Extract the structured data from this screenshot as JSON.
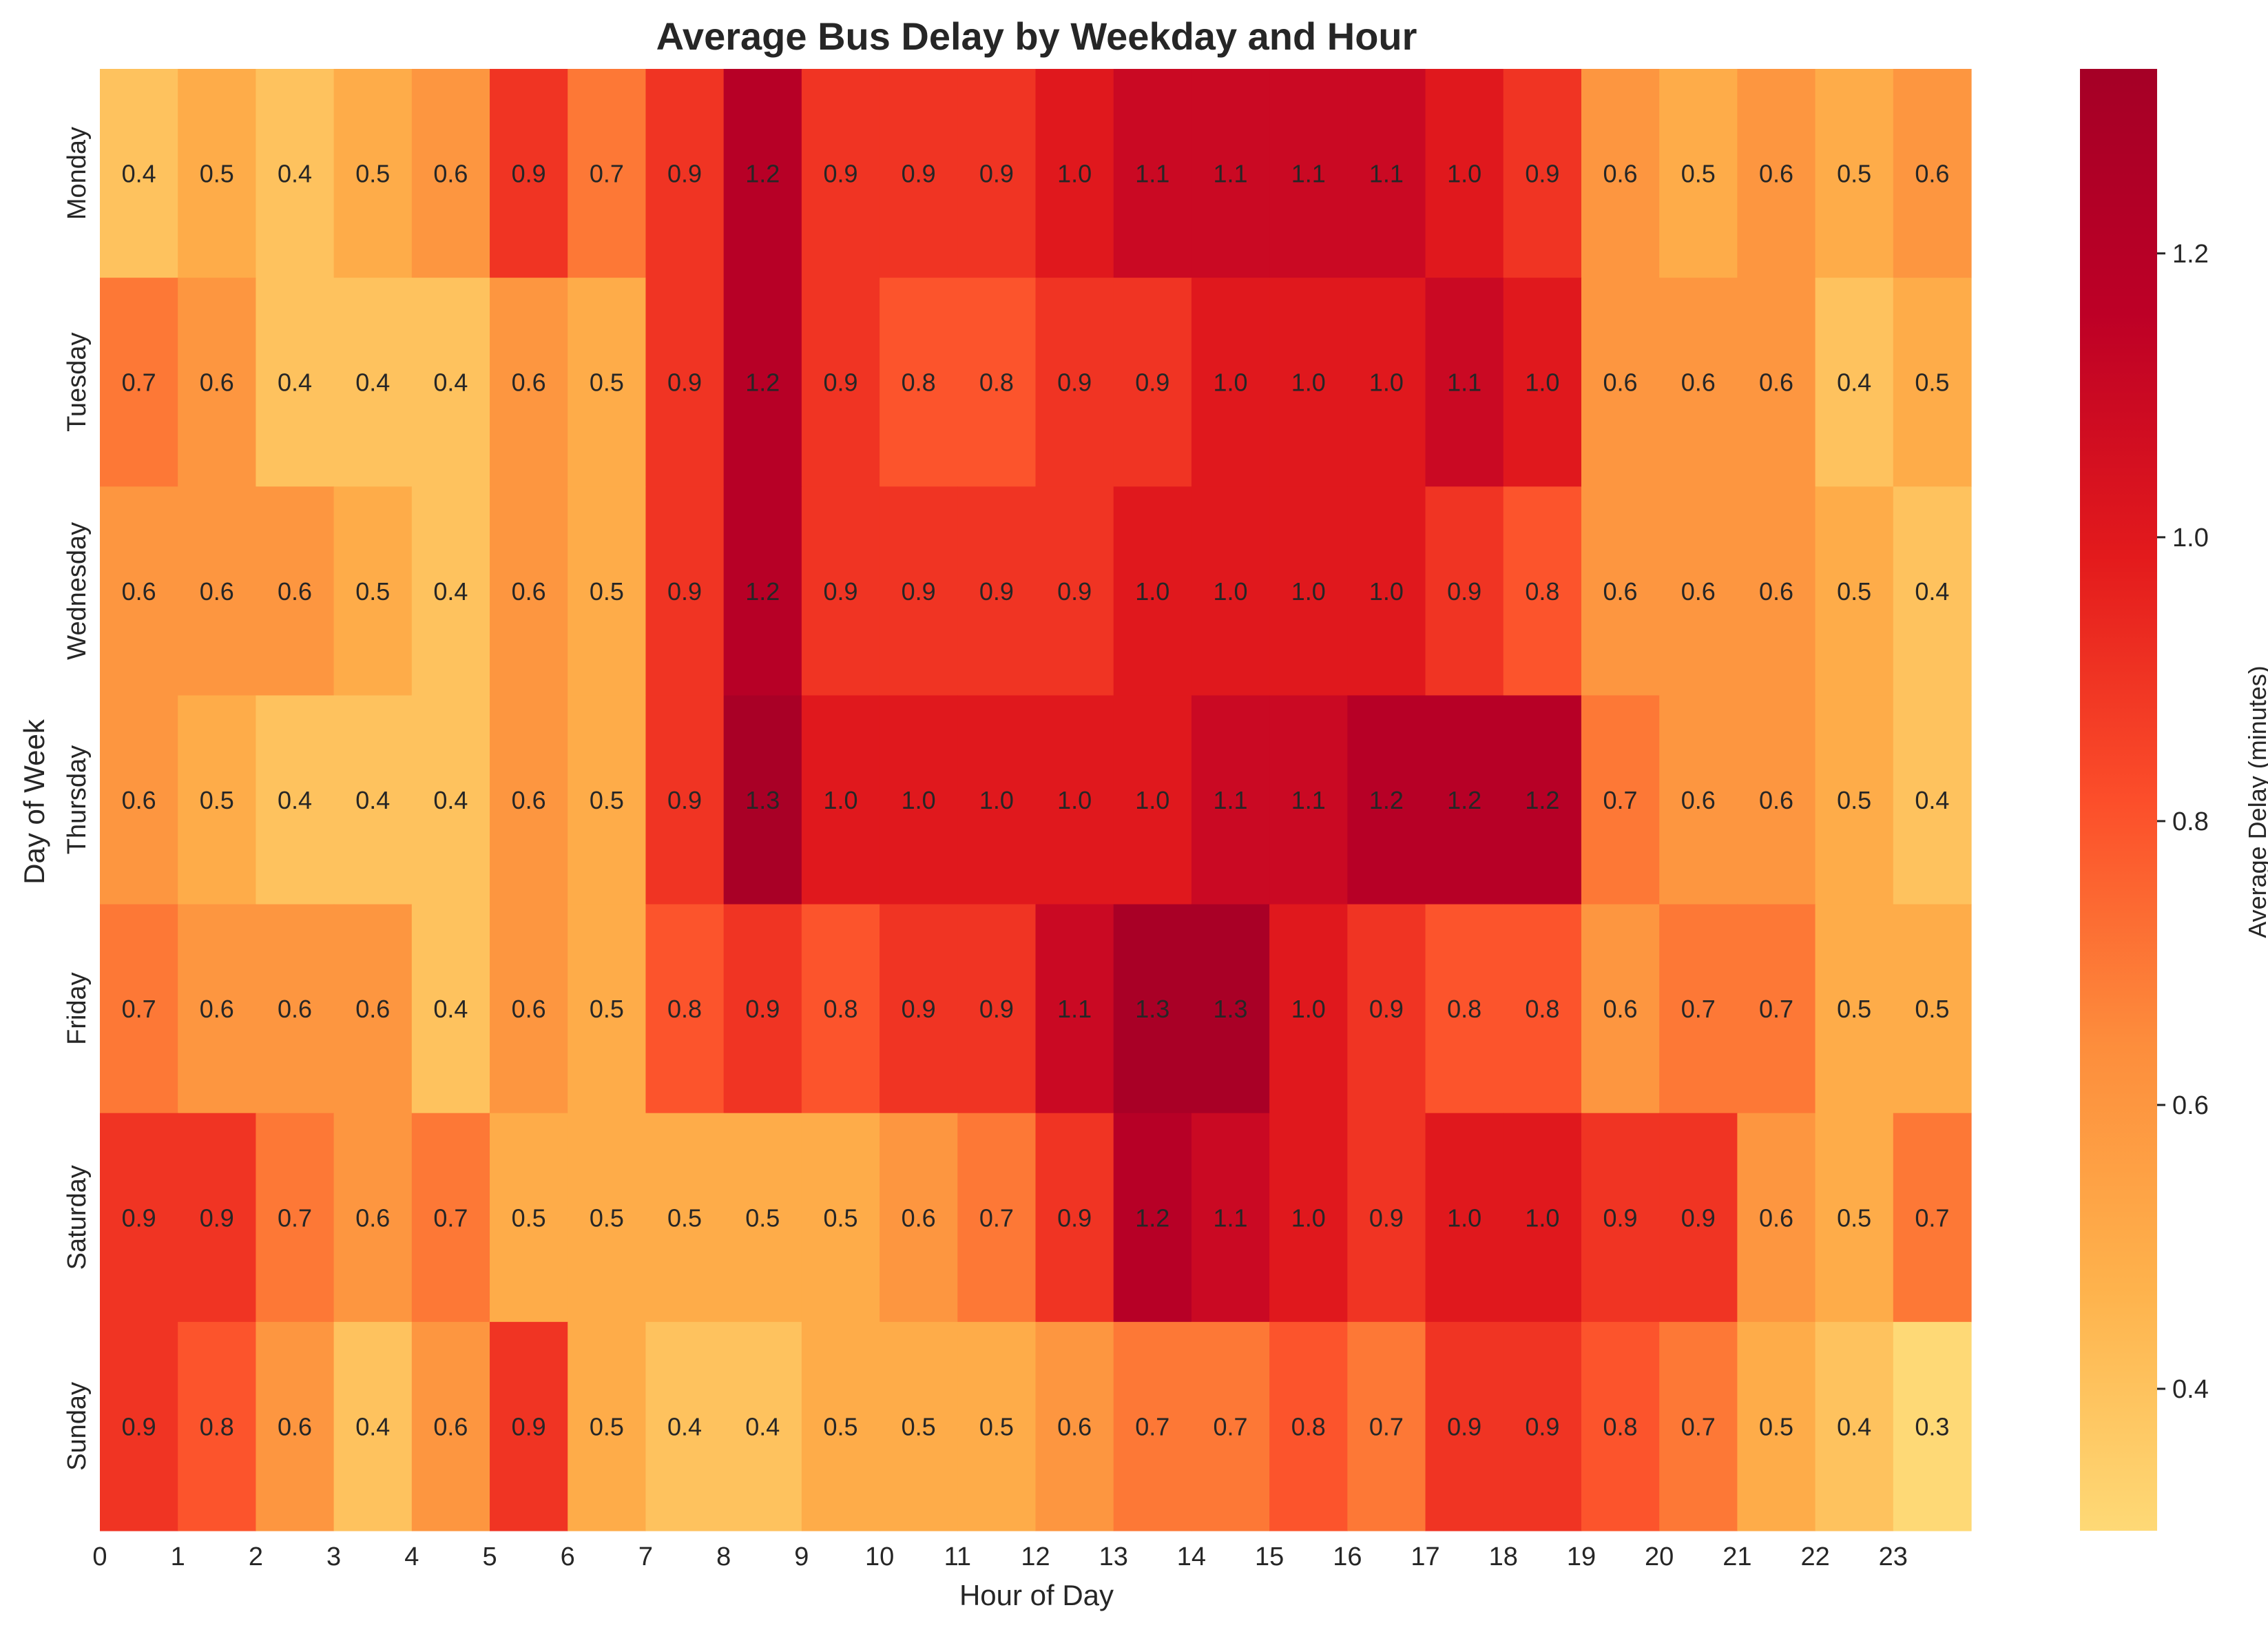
{
  "chart_data": {
    "type": "heatmap",
    "title": "Average Bus Delay by Weekday and Hour",
    "xlabel": "Hour of Day",
    "ylabel": "Day of Week",
    "x_categories": [
      0,
      1,
      2,
      3,
      4,
      5,
      6,
      7,
      8,
      9,
      10,
      11,
      12,
      13,
      14,
      15,
      16,
      17,
      18,
      19,
      20,
      21,
      22,
      23
    ],
    "y_categories": [
      "Monday",
      "Tuesday",
      "Wednesday",
      "Thursday",
      "Friday",
      "Saturday",
      "Sunday"
    ],
    "values": [
      [
        0.4,
        0.5,
        0.4,
        0.5,
        0.6,
        0.9,
        0.7,
        0.9,
        1.2,
        0.9,
        0.9,
        0.9,
        1.0,
        1.1,
        1.1,
        1.1,
        1.1,
        1.0,
        0.9,
        0.6,
        0.5,
        0.6,
        0.5,
        0.6
      ],
      [
        0.7,
        0.6,
        0.4,
        0.4,
        0.4,
        0.6,
        0.5,
        0.9,
        1.2,
        0.9,
        0.8,
        0.8,
        0.9,
        0.9,
        1.0,
        1.0,
        1.0,
        1.1,
        1.0,
        0.6,
        0.6,
        0.6,
        0.4,
        0.5
      ],
      [
        0.6,
        0.6,
        0.6,
        0.5,
        0.4,
        0.6,
        0.5,
        0.9,
        1.2,
        0.9,
        0.9,
        0.9,
        0.9,
        1.0,
        1.0,
        1.0,
        1.0,
        0.9,
        0.8,
        0.6,
        0.6,
        0.6,
        0.5,
        0.4
      ],
      [
        0.6,
        0.5,
        0.4,
        0.4,
        0.4,
        0.6,
        0.5,
        0.9,
        1.3,
        1.0,
        1.0,
        1.0,
        1.0,
        1.0,
        1.1,
        1.1,
        1.2,
        1.2,
        1.2,
        0.7,
        0.6,
        0.6,
        0.5,
        0.4
      ],
      [
        0.7,
        0.6,
        0.6,
        0.6,
        0.4,
        0.6,
        0.5,
        0.8,
        0.9,
        0.8,
        0.9,
        0.9,
        1.1,
        1.3,
        1.3,
        1.0,
        0.9,
        0.8,
        0.8,
        0.6,
        0.7,
        0.7,
        0.5,
        0.5
      ],
      [
        0.9,
        0.9,
        0.7,
        0.6,
        0.7,
        0.5,
        0.5,
        0.5,
        0.5,
        0.5,
        0.6,
        0.7,
        0.9,
        1.2,
        1.1,
        1.0,
        0.9,
        1.0,
        1.0,
        0.9,
        0.9,
        0.6,
        0.5,
        0.7
      ],
      [
        0.9,
        0.8,
        0.6,
        0.4,
        0.6,
        0.9,
        0.5,
        0.4,
        0.4,
        0.5,
        0.5,
        0.5,
        0.6,
        0.7,
        0.7,
        0.8,
        0.7,
        0.9,
        0.9,
        0.8,
        0.7,
        0.5,
        0.4,
        0.3
      ]
    ],
    "colorbar": {
      "label": "Average Delay (minutes)",
      "ticks": [
        "0.4",
        "0.6",
        "0.8",
        "1.0",
        "1.2"
      ],
      "range": [
        0.3,
        1.33
      ],
      "colormap": "YlOrRd-like",
      "colors": [
        "#fed976",
        "#feb24c",
        "#fd8d3c",
        "#fc4e2a",
        "#e31a1c",
        "#bd0026",
        "#a50026"
      ]
    },
    "grid": false
  }
}
